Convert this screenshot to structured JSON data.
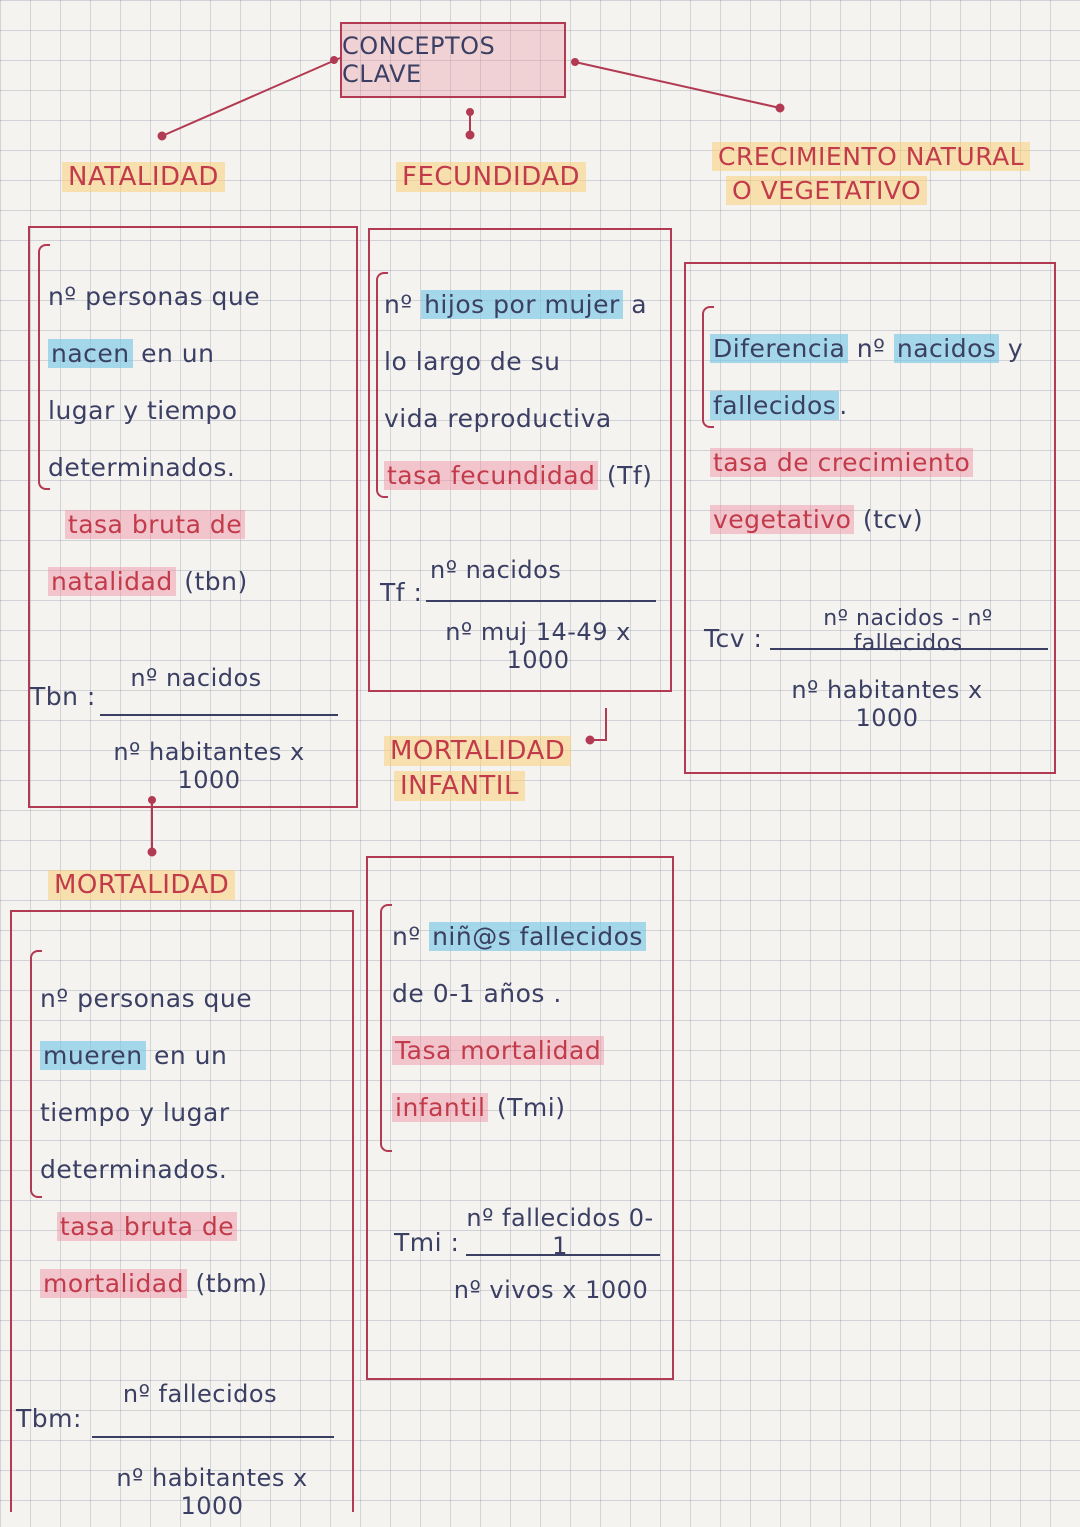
{
  "title": "CONCEPTOS CLAVE",
  "concepts": {
    "natalidad": {
      "heading": "NATALIDAD",
      "def_lines": [
        {
          "parts": [
            {
              "t": "nº personas que",
              "h": ""
            }
          ]
        },
        {
          "parts": [
            {
              "t": "nacen",
              "h": "blue"
            },
            {
              "t": " en un",
              "h": ""
            }
          ]
        },
        {
          "parts": [
            {
              "t": "lugar y tiempo",
              "h": ""
            }
          ]
        },
        {
          "parts": [
            {
              "t": "determinados.",
              "h": ""
            }
          ]
        },
        {
          "parts": [
            {
              "t": "  ",
              "h": ""
            },
            {
              "t": "tasa bruta de",
              "h": "pink"
            }
          ]
        },
        {
          "parts": [
            {
              "t": "natalidad",
              "h": "pink"
            },
            {
              "t": " (tbn)",
              "h": ""
            }
          ]
        }
      ],
      "formula_label": "Tbn :",
      "numerator": "nº nacidos",
      "denominator": "nº habitantes x 1000"
    },
    "fecundidad": {
      "heading": "FECUNDIDAD",
      "def_lines": [
        {
          "parts": [
            {
              "t": "nº ",
              "h": ""
            },
            {
              "t": "hijos por mujer",
              "h": "blue"
            },
            {
              "t": " a",
              "h": ""
            }
          ]
        },
        {
          "parts": [
            {
              "t": "lo largo de su",
              "h": ""
            }
          ]
        },
        {
          "parts": [
            {
              "t": "vida reproductiva",
              "h": ""
            }
          ]
        },
        {
          "parts": [
            {
              "t": "tasa fecundidad",
              "h": "pink"
            },
            {
              "t": " (Tf)",
              "h": ""
            }
          ]
        }
      ],
      "formula_label": "Tf :",
      "numerator": "nº nacidos",
      "denominator": "nº muj 14-49 x 1000"
    },
    "crecimiento": {
      "heading_lines": [
        "CRECIMIENTO NATURAL",
        "O VEGETATIVO"
      ],
      "def_lines": [
        {
          "parts": [
            {
              "t": "Diferencia",
              "h": "blue"
            },
            {
              "t": " nº ",
              "h": ""
            },
            {
              "t": "nacidos",
              "h": "blue"
            },
            {
              "t": " y",
              "h": ""
            }
          ]
        },
        {
          "parts": [
            {
              "t": "fallecidos",
              "h": "blue"
            },
            {
              "t": ".",
              "h": ""
            }
          ]
        },
        {
          "parts": [
            {
              "t": "tasa de crecimiento",
              "h": "pink"
            }
          ]
        },
        {
          "parts": [
            {
              "t": "vegetativo",
              "h": "pink"
            },
            {
              "t": " (tcv)",
              "h": ""
            }
          ]
        }
      ],
      "formula_label": "Tcv :",
      "numerator": "nº nacidos - nº fallecidos",
      "denominator": "nº habitantes x 1000"
    },
    "mortalidad_infantil": {
      "heading_lines": [
        "MORTALIDAD",
        "INFANTIL"
      ],
      "def_lines": [
        {
          "parts": [
            {
              "t": "nº ",
              "h": ""
            },
            {
              "t": "niñ@s fallecidos",
              "h": "blue"
            }
          ]
        },
        {
          "parts": [
            {
              "t": "de 0-1 años .",
              "h": ""
            }
          ]
        },
        {
          "parts": [
            {
              "t": "Tasa mortalidad",
              "h": "pink"
            }
          ]
        },
        {
          "parts": [
            {
              "t": "infantil",
              "h": "pink"
            },
            {
              "t": " (Tmi)",
              "h": ""
            }
          ]
        }
      ],
      "formula_label": "Tmi :",
      "numerator": "nº fallecidos 0-1",
      "denominator": "nº vivos x 1000"
    },
    "mortalidad": {
      "heading": "MORTALIDAD",
      "def_lines": [
        {
          "parts": [
            {
              "t": "nº personas que",
              "h": ""
            }
          ]
        },
        {
          "parts": [
            {
              "t": "mueren",
              "h": "blue"
            },
            {
              "t": " en un",
              "h": ""
            }
          ]
        },
        {
          "parts": [
            {
              "t": "tiempo y lugar",
              "h": ""
            }
          ]
        },
        {
          "parts": [
            {
              "t": "determinados.",
              "h": ""
            }
          ]
        },
        {
          "parts": [
            {
              "t": "  ",
              "h": ""
            },
            {
              "t": "tasa bruta de",
              "h": "pink"
            }
          ]
        },
        {
          "parts": [
            {
              "t": "mortalidad",
              "h": "pink"
            },
            {
              "t": " (tbm)",
              "h": ""
            }
          ]
        }
      ],
      "formula_label": "Tbm:",
      "numerator": "nº fallecidos",
      "denominator": "nº habitantes x 1000"
    }
  },
  "colors": {
    "ink": "#3a3f63",
    "red_ink": "#c23b4a",
    "box_border": "#b23a52",
    "highlight_blue": "#78c8e6",
    "highlight_pink": "#f08ca0",
    "highlight_yellow": "#facd78"
  }
}
